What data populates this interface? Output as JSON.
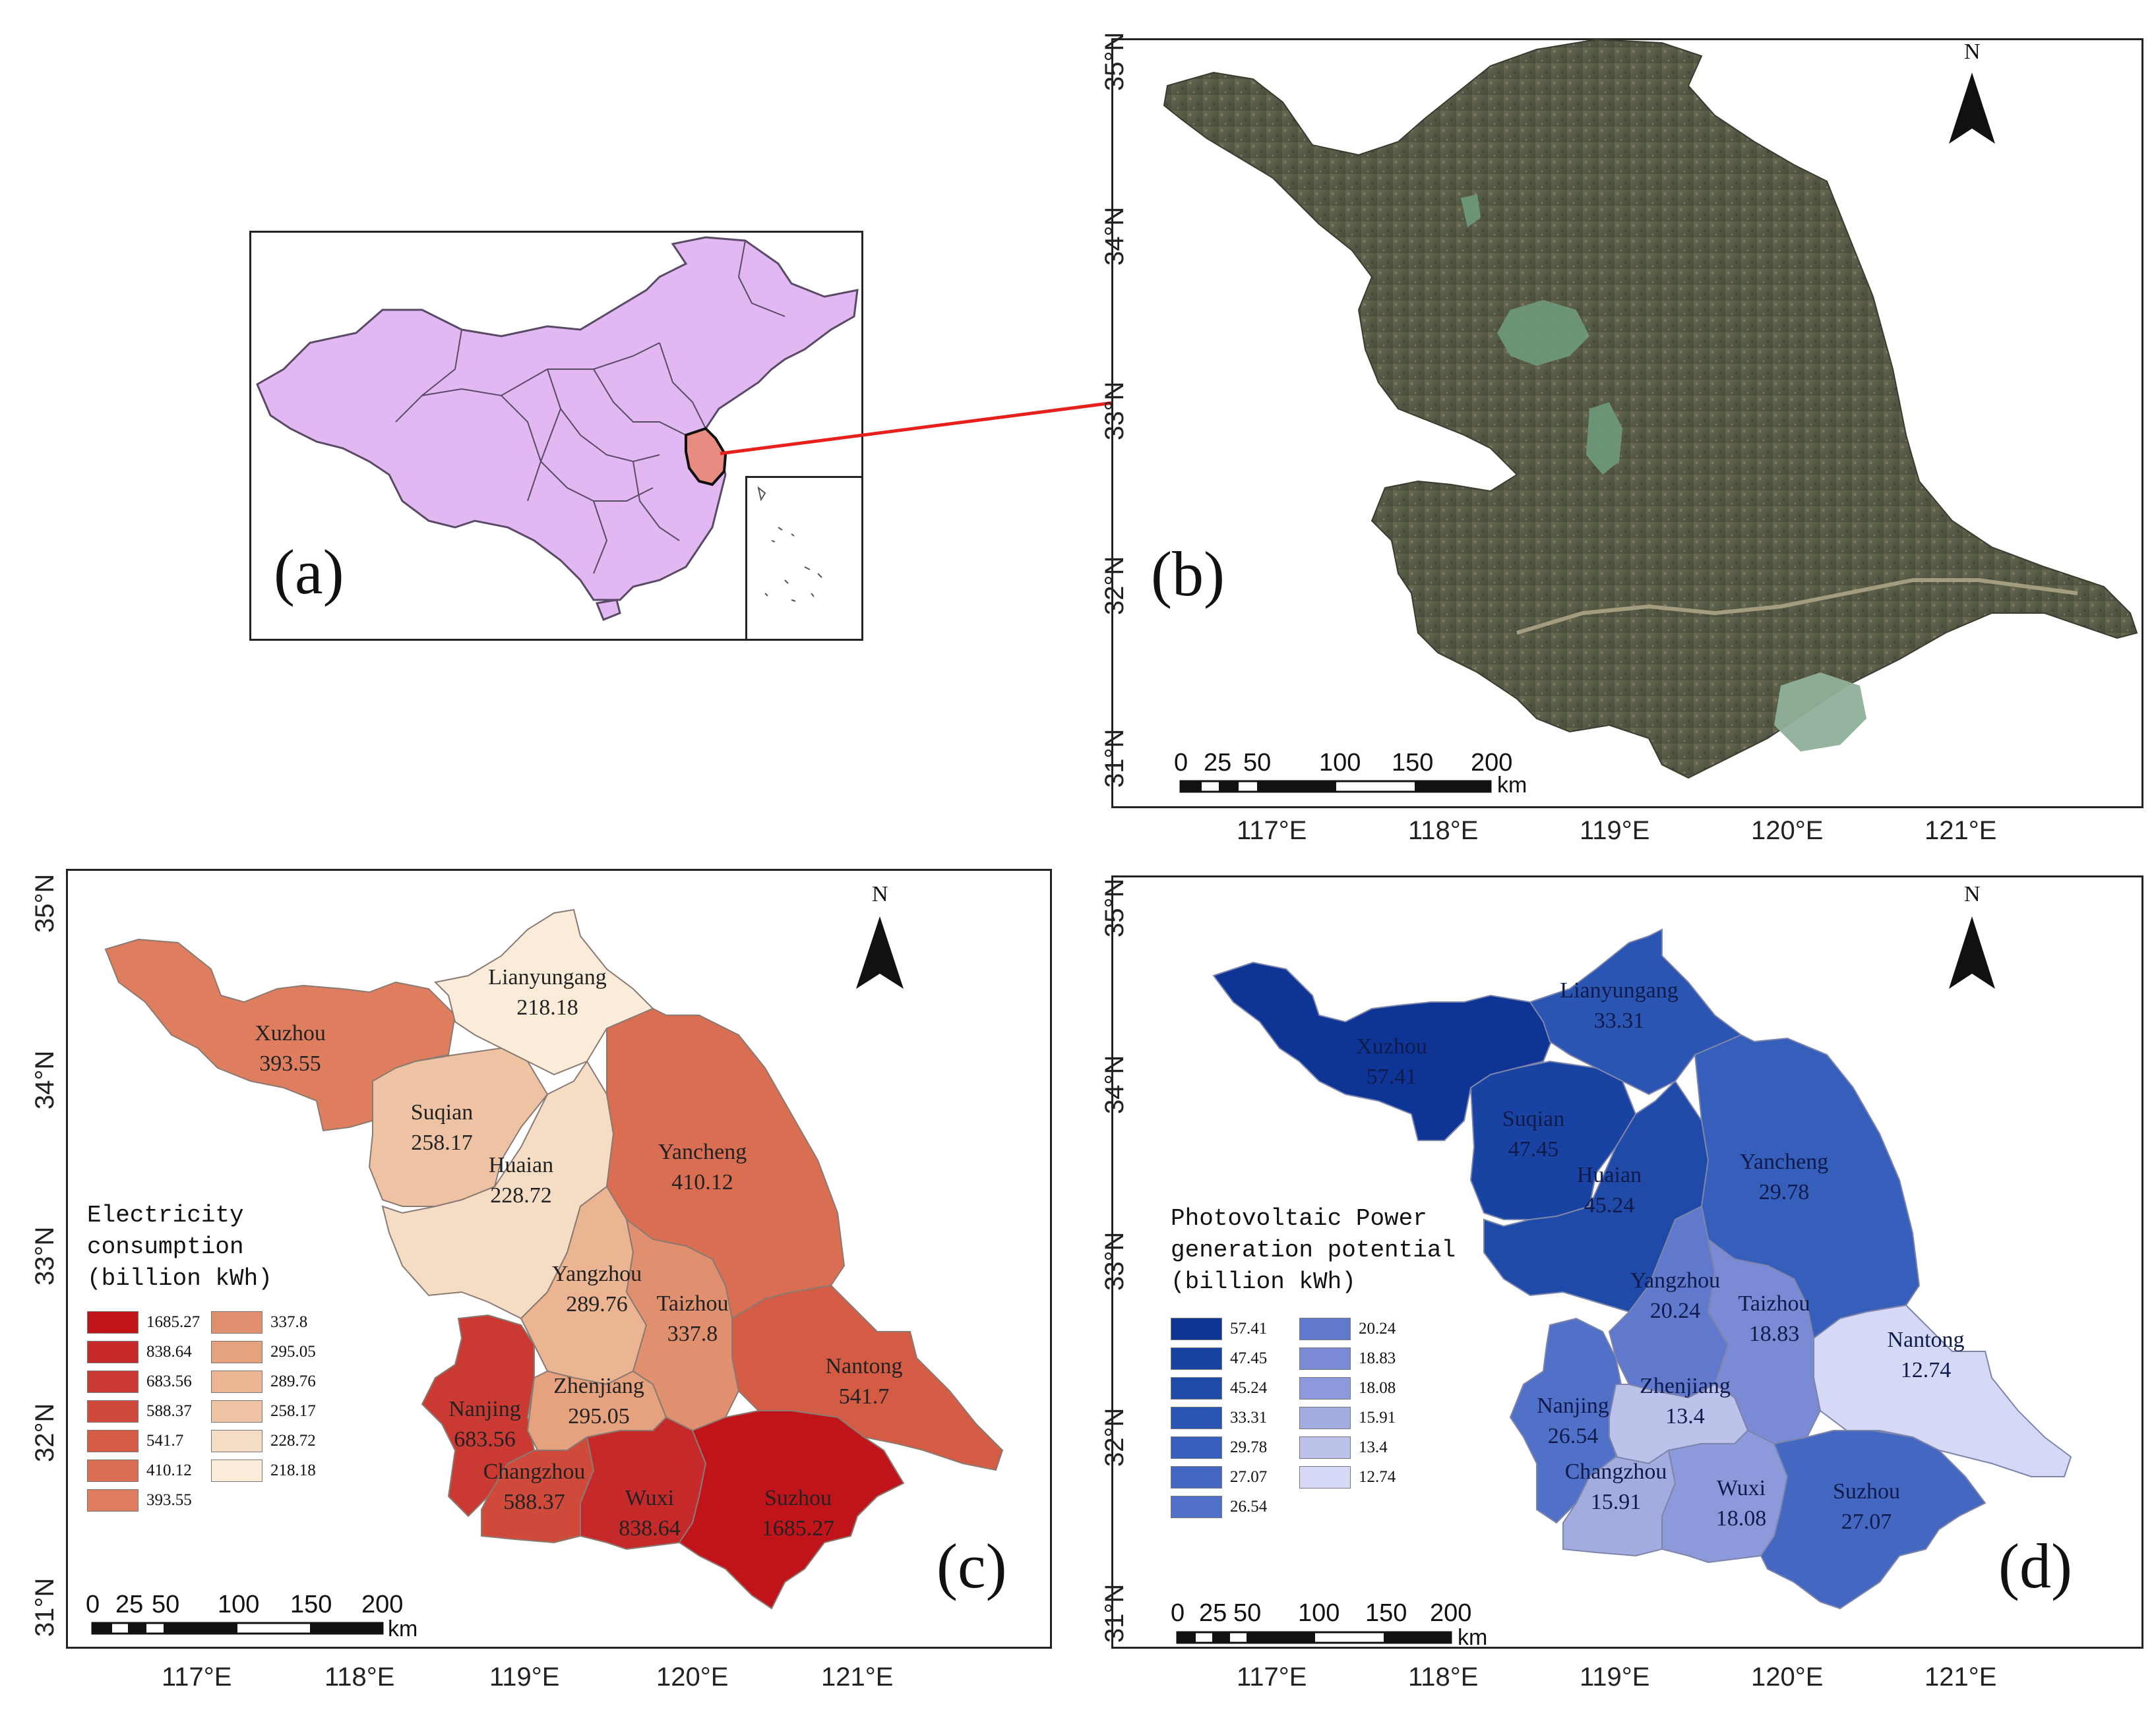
{
  "panels": {
    "a": {
      "letter": "(a)"
    },
    "b": {
      "letter": "(b)"
    },
    "c": {
      "letter": "(c)"
    },
    "d": {
      "letter": "(d)"
    }
  },
  "axes": {
    "lat_labels": [
      "35°N",
      "34°N",
      "33°N",
      "32°N",
      "31°N"
    ],
    "lon_labels": [
      "117°E",
      "118°E",
      "119°E",
      "120°E",
      "121°E"
    ]
  },
  "north_arrow": {
    "label": "N"
  },
  "scale_bar": {
    "numbers": [
      "0",
      "25",
      "50",
      "100",
      "150",
      "200"
    ],
    "unit": "km"
  },
  "colors": {
    "china_fill": "#e2b8f2",
    "jiangsu_highlight": "#e88b80",
    "arrow": "#e8201c",
    "satellite_base": "#5e5d47"
  },
  "map_c": {
    "legend_title": [
      "Electricity",
      "consumption",
      "(billion kWh)"
    ],
    "legend_col1": [
      {
        "value": "1685.27",
        "color": "#c1141a"
      },
      {
        "value": "838.64",
        "color": "#c6292a"
      },
      {
        "value": "683.56",
        "color": "#ca3a33"
      },
      {
        "value": "588.37",
        "color": "#cf4a3b"
      },
      {
        "value": "541.7",
        "color": "#d45c45"
      },
      {
        "value": "410.12",
        "color": "#da6e52"
      },
      {
        "value": "393.55",
        "color": "#de7e5f"
      }
    ],
    "legend_col2": [
      {
        "value": "337.8",
        "color": "#e0906e"
      },
      {
        "value": "295.05",
        "color": "#e6a27f"
      },
      {
        "value": "289.76",
        "color": "#ebb593"
      },
      {
        "value": "258.17",
        "color": "#eec3a4"
      },
      {
        "value": "228.72",
        "color": "#f5dcc4"
      },
      {
        "value": "218.18",
        "color": "#fbebd9"
      }
    ],
    "cities": [
      {
        "name": "Lianyungang",
        "value": "218.18"
      },
      {
        "name": "Xuzhou",
        "value": "393.55"
      },
      {
        "name": "Suqian",
        "value": "258.17"
      },
      {
        "name": "Huaian",
        "value": "228.72"
      },
      {
        "name": "Yancheng",
        "value": "410.12"
      },
      {
        "name": "Yangzhou",
        "value": "289.76"
      },
      {
        "name": "Taizhou",
        "value": "337.8"
      },
      {
        "name": "Nantong",
        "value": "541.7"
      },
      {
        "name": "Nanjing",
        "value": "683.56"
      },
      {
        "name": "Zhenjiang",
        "value": "295.05"
      },
      {
        "name": "Changzhou",
        "value": "588.37"
      },
      {
        "name": "Wuxi",
        "value": "838.64"
      },
      {
        "name": "Suzhou",
        "value": "1685.27"
      }
    ]
  },
  "map_d": {
    "legend_title": [
      "Photovoltaic Power",
      "generation potential",
      "(billion kWh)"
    ],
    "legend_col1": [
      {
        "value": "57.41",
        "color": "#0e3596"
      },
      {
        "value": "47.45",
        "color": "#1843a2"
      },
      {
        "value": "45.24",
        "color": "#1f4aa8"
      },
      {
        "value": "33.31",
        "color": "#2a55b2"
      },
      {
        "value": "29.78",
        "color": "#365fbb"
      },
      {
        "value": "27.07",
        "color": "#4467c2"
      },
      {
        "value": "26.54",
        "color": "#5170c8"
      }
    ],
    "legend_col2": [
      {
        "value": "20.24",
        "color": "#6179cc"
      },
      {
        "value": "18.83",
        "color": "#7b8ad4"
      },
      {
        "value": "18.08",
        "color": "#8c99da"
      },
      {
        "value": "15.91",
        "color": "#a2acdf"
      },
      {
        "value": "13.4",
        "color": "#bcc2ea"
      },
      {
        "value": "12.74",
        "color": "#d6d9f6"
      }
    ],
    "cities": [
      {
        "name": "Lianyungang",
        "value": "33.31"
      },
      {
        "name": "Xuzhou",
        "value": "57.41"
      },
      {
        "name": "Suqian",
        "value": "47.45"
      },
      {
        "name": "Huaian",
        "value": "45.24"
      },
      {
        "name": "Yancheng",
        "value": "29.78"
      },
      {
        "name": "Yangzhou",
        "value": "20.24"
      },
      {
        "name": "Taizhou",
        "value": "18.83"
      },
      {
        "name": "Nantong",
        "value": "12.74"
      },
      {
        "name": "Nanjing",
        "value": "26.54"
      },
      {
        "name": "Zhenjiang",
        "value": "13.4"
      },
      {
        "name": "Changzhou",
        "value": "15.91"
      },
      {
        "name": "Wuxi",
        "value": "18.08"
      },
      {
        "name": "Suzhou",
        "value": "27.07"
      }
    ]
  }
}
